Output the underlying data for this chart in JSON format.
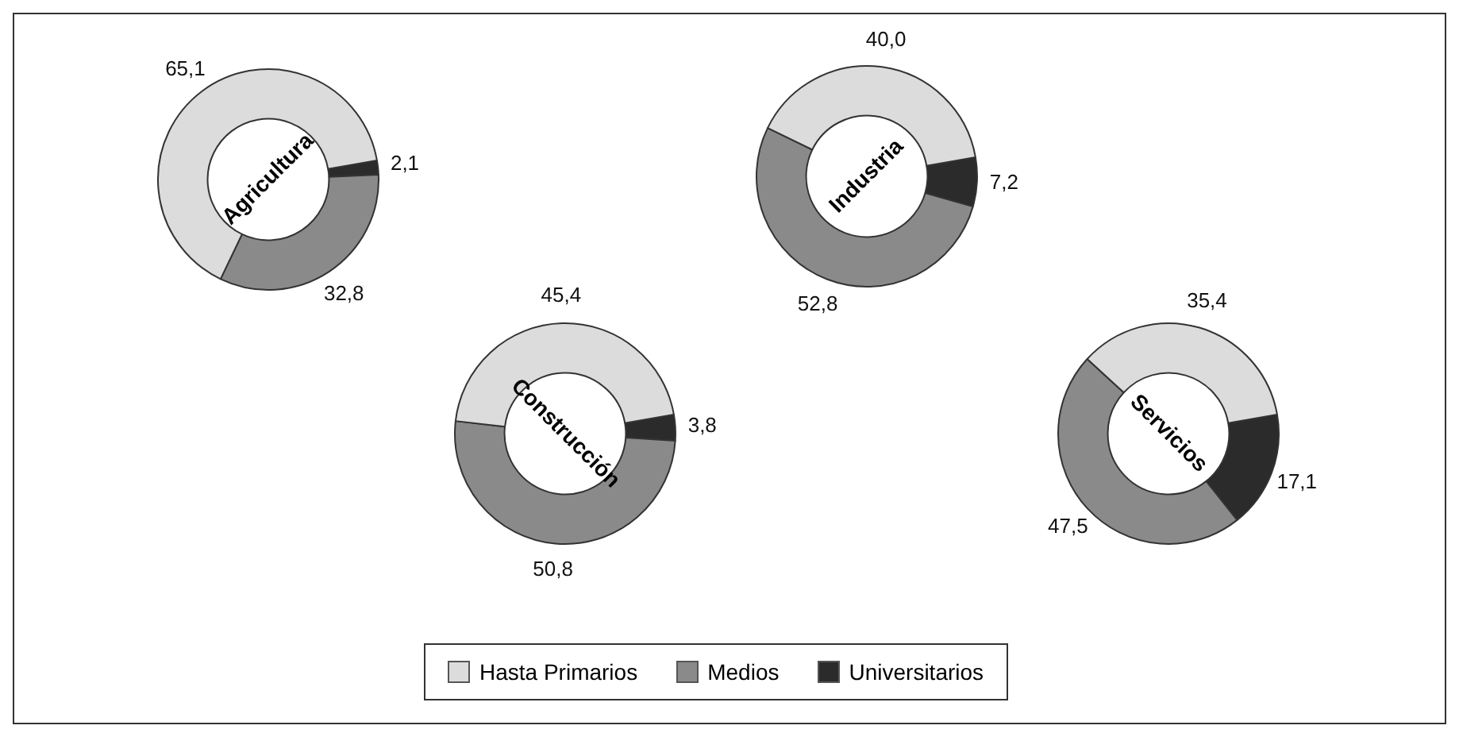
{
  "chart_data": [
    {
      "type": "donut",
      "title": "Agricultura",
      "categories": [
        "Hasta Primarios",
        "Medios",
        "Universitarios"
      ],
      "values": [
        65.1,
        32.8,
        2.1
      ],
      "value_labels": [
        "65,1",
        "32,8",
        "2,1"
      ],
      "colors": [
        "#dcdcdc",
        "#8a8a8a",
        "#2b2b2b"
      ],
      "legend": "bottom"
    },
    {
      "type": "donut",
      "title": "Industria",
      "categories": [
        null,
        null,
        null
      ],
      "values": [
        40.0,
        52.8,
        7.2
      ],
      "value_labels": [
        "40,0",
        "52,8",
        "7,2"
      ],
      "colors": [
        "#dcdcdc",
        "#8a8a8a",
        "#2b2b2b"
      ]
    },
    {
      "type": "donut",
      "title": "Construcción",
      "categories": [
        null,
        null,
        null
      ],
      "values": [
        45.4,
        50.8,
        3.8
      ],
      "value_labels": [
        "45,4",
        "50,8",
        "3,8"
      ],
      "colors": [
        "#dcdcdc",
        "#8a8a8a",
        "#2b2b2b"
      ]
    },
    {
      "type": "donut",
      "title": "Servicios",
      "categories": [
        null,
        null,
        null
      ],
      "values": [
        35.4,
        47.5,
        17.1
      ],
      "value_labels": [
        "35,4",
        "47,5",
        "17,1"
      ],
      "colors": [
        "#dcdcdc",
        "#8a8a8a",
        "#2b2b2b"
      ]
    }
  ]
}
